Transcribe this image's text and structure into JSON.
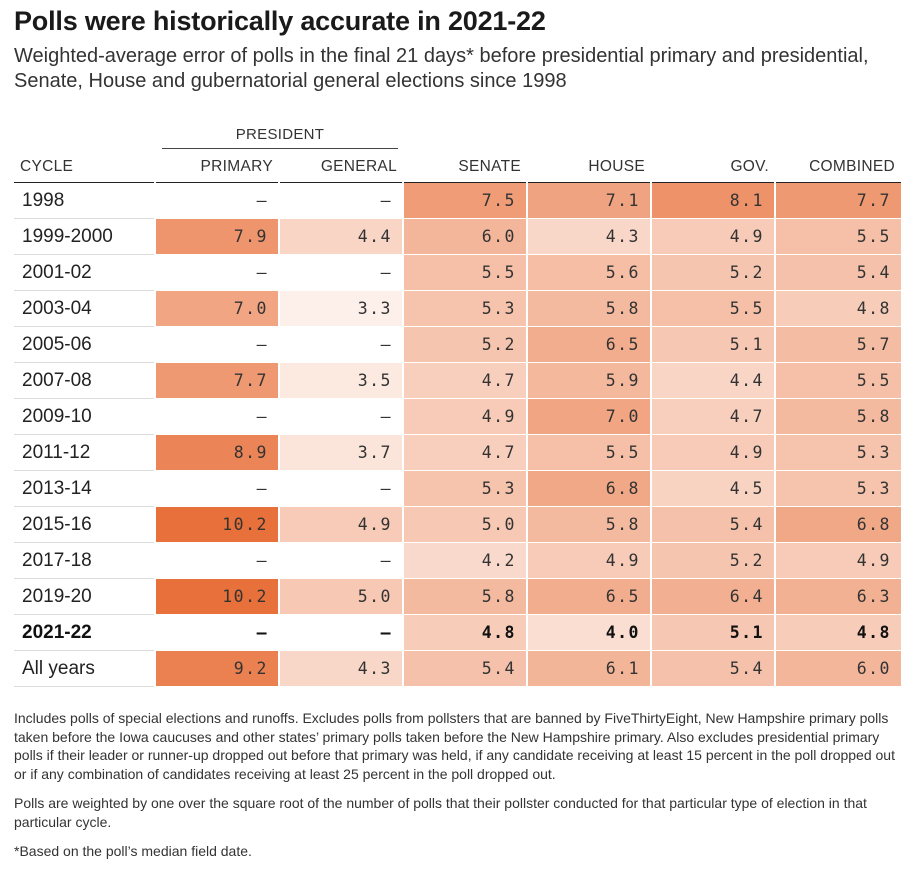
{
  "title": "Polls were historically accurate in 2021-22",
  "subtitle": "Weighted-average error of polls in the final 21 days* before presidential primary and presidential, Senate, House and gubernatorial general elections since 1998",
  "group_header": "PRESIDENT",
  "chart_data": {
    "type": "table",
    "columns": [
      "CYCLE",
      "PRIMARY",
      "GENERAL",
      "SENATE",
      "HOUSE",
      "GOV.",
      "COMBINED"
    ],
    "rows": [
      {
        "cycle": "1998",
        "values": [
          "–",
          "–",
          "7.5",
          "7.1",
          "8.1",
          "7.7"
        ]
      },
      {
        "cycle": "1999-2000",
        "values": [
          "7.9",
          "4.4",
          "6.0",
          "4.3",
          "4.9",
          "5.5"
        ]
      },
      {
        "cycle": "2001-02",
        "values": [
          "–",
          "–",
          "5.5",
          "5.6",
          "5.2",
          "5.4"
        ]
      },
      {
        "cycle": "2003-04",
        "values": [
          "7.0",
          "3.3",
          "5.3",
          "5.8",
          "5.5",
          "4.8"
        ]
      },
      {
        "cycle": "2005-06",
        "values": [
          "–",
          "–",
          "5.2",
          "6.5",
          "5.1",
          "5.7"
        ]
      },
      {
        "cycle": "2007-08",
        "values": [
          "7.7",
          "3.5",
          "4.7",
          "5.9",
          "4.4",
          "5.5"
        ]
      },
      {
        "cycle": "2009-10",
        "values": [
          "–",
          "–",
          "4.9",
          "7.0",
          "4.7",
          "5.8"
        ]
      },
      {
        "cycle": "2011-12",
        "values": [
          "8.9",
          "3.7",
          "4.7",
          "5.5",
          "4.9",
          "5.3"
        ]
      },
      {
        "cycle": "2013-14",
        "values": [
          "–",
          "–",
          "5.3",
          "6.8",
          "4.5",
          "5.3"
        ]
      },
      {
        "cycle": "2015-16",
        "values": [
          "10.2",
          "4.9",
          "5.0",
          "5.8",
          "5.4",
          "6.8"
        ]
      },
      {
        "cycle": "2017-18",
        "values": [
          "–",
          "–",
          "4.2",
          "4.9",
          "5.2",
          "4.9"
        ]
      },
      {
        "cycle": "2019-20",
        "values": [
          "10.2",
          "5.0",
          "5.8",
          "6.5",
          "6.4",
          "6.3"
        ]
      },
      {
        "cycle": "2021-22",
        "values": [
          "–",
          "–",
          "4.8",
          "4.0",
          "5.1",
          "4.8"
        ],
        "bold": true
      },
      {
        "cycle": "All years",
        "values": [
          "9.2",
          "4.3",
          "5.4",
          "6.1",
          "5.4",
          "6.0"
        ]
      }
    ],
    "color_scale": {
      "low": "#fdf0ea",
      "high": "#e8703a",
      "domain": [
        3.3,
        10.2
      ]
    }
  },
  "notes": [
    "Includes polls of special elections and runoffs. Excludes polls from pollsters that are banned by FiveThirtyEight, New Hampshire primary polls taken before the Iowa caucuses and other states’ primary polls taken before the New Hampshire primary. Also excludes presidential primary polls if their leader or runner-up dropped out before that primary was held, if any candidate receiving at least 15 percent in the poll dropped out or if any combination of candidates receiving at least 25 percent in the poll dropped out.",
    "Polls are weighted by one over the square root of the number of polls that their pollster conducted for that particular type of election in that particular cycle.",
    "*Based on the poll’s median field date."
  ]
}
